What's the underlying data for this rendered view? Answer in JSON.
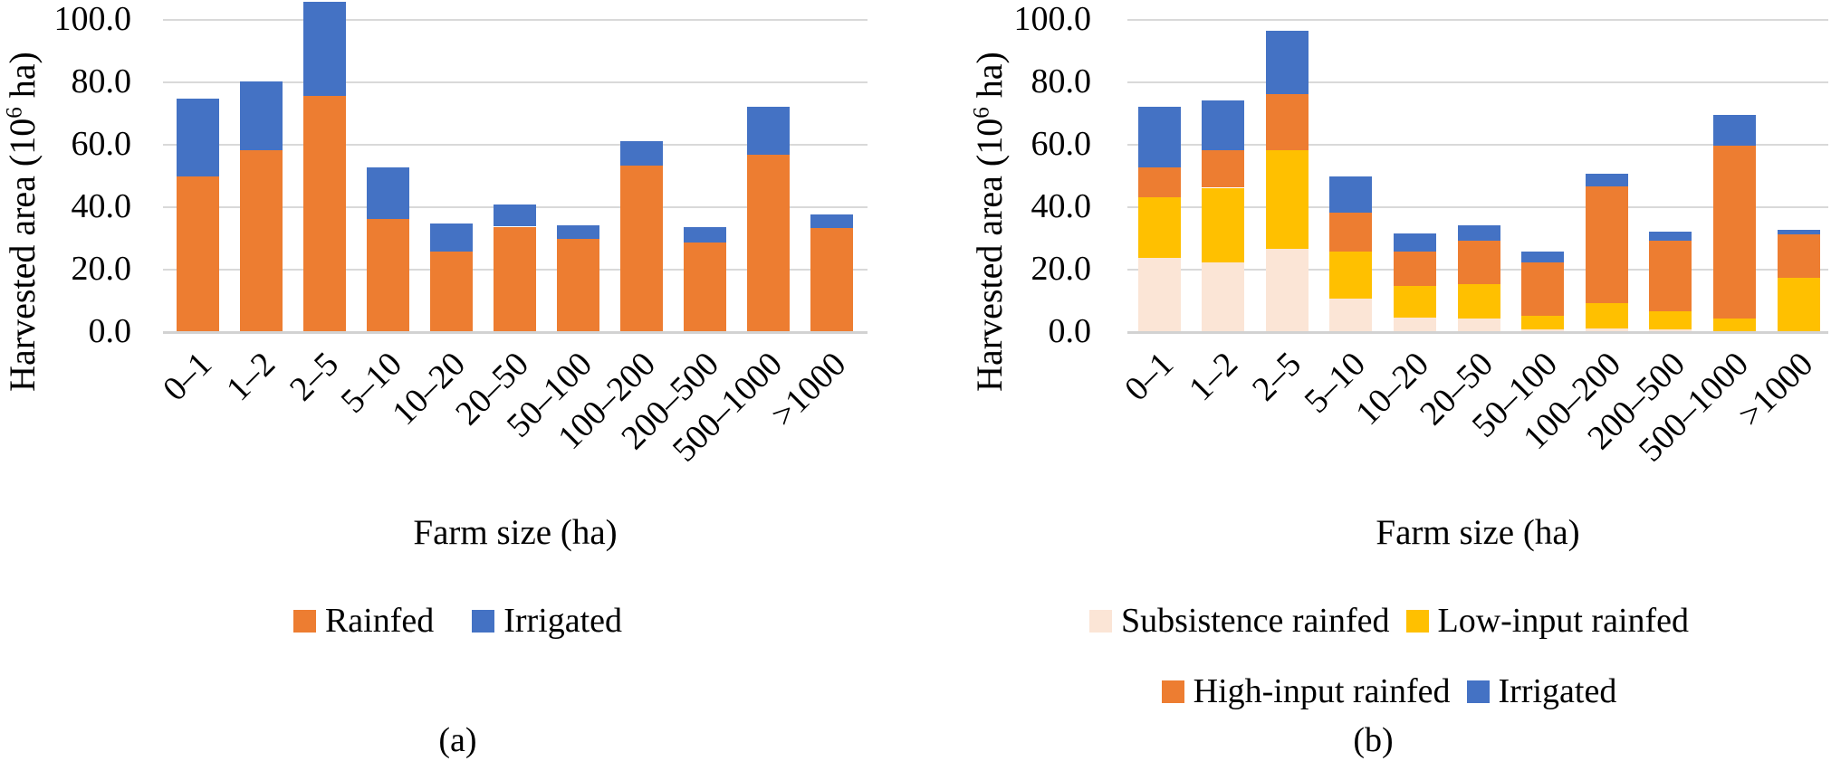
{
  "figure": {
    "background": "#FFFFFF",
    "gridline_color": "#D9D9D9"
  },
  "chart_data": [
    {
      "id": "a",
      "type": "bar",
      "stacked": true,
      "title": "",
      "caption": "(a)",
      "categories": [
        "0–1",
        "1–2",
        "2–5",
        "5–10",
        "10–20",
        "20–50",
        "50–100",
        "100–200",
        "200–500",
        "500–1000",
        ">1000"
      ],
      "series": [
        {
          "name": "Rainfed",
          "color": "#ED7D31",
          "values": [
            49.5,
            58,
            75.5,
            36,
            25.5,
            33.5,
            29.5,
            53,
            28.5,
            56.5,
            33
          ]
        },
        {
          "name": "Irrigated",
          "color": "#4472C4",
          "values": [
            25,
            22,
            30,
            16.5,
            9,
            7,
            4.5,
            8,
            5,
            15.5,
            4.5
          ]
        }
      ],
      "xlabel": "Farm size (ha)",
      "ylabel": "Harvested area (10⁶ ha)",
      "ylabel_parts": {
        "prefix": "Harvested area (10",
        "sup": "6",
        "suffix": " ha)"
      },
      "ylim": [
        0,
        106.2
      ],
      "yticks": [
        {
          "value": 0,
          "label": "0.0"
        },
        {
          "value": 20,
          "label": "20.0"
        },
        {
          "value": 40,
          "label": "40.0"
        },
        {
          "value": 60,
          "label": "60.0"
        },
        {
          "value": 80,
          "label": "80.0"
        },
        {
          "value": 100,
          "label": "100.0"
        }
      ],
      "grid": true,
      "legend_position": "bottom"
    },
    {
      "id": "b",
      "type": "bar",
      "stacked": true,
      "title": "",
      "caption": "(b)",
      "categories": [
        "0–1",
        "1–2",
        "2–5",
        "5–10",
        "10–20",
        "20–50",
        "50–100",
        "100–200",
        "200–500",
        "500–1000",
        ">1000"
      ],
      "series": [
        {
          "name": "Subsistence rainfed",
          "color": "#FBE5D6",
          "values": [
            23.5,
            22,
            26.5,
            10.5,
            4.5,
            4,
            0.5,
            1,
            0.5,
            0,
            0
          ]
        },
        {
          "name": "Low-input rainfed",
          "color": "#FFC000",
          "values": [
            19.5,
            24,
            31.5,
            15,
            10,
            11,
            4.5,
            8,
            6,
            4,
            17
          ]
        },
        {
          "name": "High-input rainfed",
          "color": "#ED7D31",
          "values": [
            9.5,
            12,
            18,
            12.5,
            11,
            14,
            17,
            37.5,
            22.5,
            55.5,
            14
          ]
        },
        {
          "name": "Irrigated",
          "color": "#4472C4",
          "values": [
            19.5,
            16,
            20.5,
            11.5,
            6,
            5,
            3.5,
            4,
            3,
            10,
            1.5
          ]
        }
      ],
      "xlabel": "Farm size (ha)",
      "ylabel": "Harvested area (10⁶ ha)",
      "ylabel_parts": {
        "prefix": "Harvested area (10",
        "sup": "6",
        "suffix": " ha)"
      },
      "ylim": [
        0,
        106.2
      ],
      "yticks": [
        {
          "value": 0,
          "label": "0.0"
        },
        {
          "value": 20,
          "label": "20.0"
        },
        {
          "value": 40,
          "label": "40.0"
        },
        {
          "value": 60,
          "label": "60.0"
        },
        {
          "value": 80,
          "label": "80.0"
        },
        {
          "value": 100,
          "label": "100.0"
        }
      ],
      "grid": true,
      "legend_position": "bottom"
    }
  ]
}
